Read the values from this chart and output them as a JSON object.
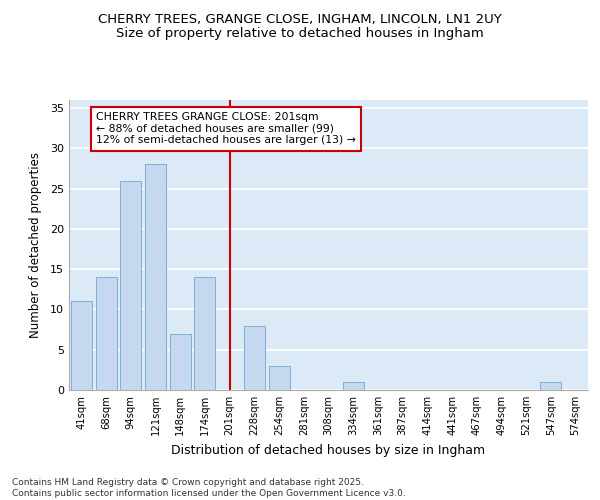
{
  "title1": "CHERRY TREES, GRANGE CLOSE, INGHAM, LINCOLN, LN1 2UY",
  "title2": "Size of property relative to detached houses in Ingham",
  "xlabel": "Distribution of detached houses by size in Ingham",
  "ylabel": "Number of detached properties",
  "categories": [
    "41sqm",
    "68sqm",
    "94sqm",
    "121sqm",
    "148sqm",
    "174sqm",
    "201sqm",
    "228sqm",
    "254sqm",
    "281sqm",
    "308sqm",
    "334sqm",
    "361sqm",
    "387sqm",
    "414sqm",
    "441sqm",
    "467sqm",
    "494sqm",
    "521sqm",
    "547sqm",
    "574sqm"
  ],
  "values": [
    11,
    14,
    26,
    28,
    7,
    14,
    0,
    8,
    3,
    0,
    0,
    1,
    0,
    0,
    0,
    0,
    0,
    0,
    0,
    1,
    0
  ],
  "bar_color": "#c5d8f0",
  "bar_edge_color": "#7bafd4",
  "highlight_index": 6,
  "highlight_color": "#cc0000",
  "annotation_text": "CHERRY TREES GRANGE CLOSE: 201sqm\n← 88% of detached houses are smaller (99)\n12% of semi-detached houses are larger (13) →",
  "annotation_box_color": "#ffffff",
  "annotation_box_edge": "#cc0000",
  "ylim": [
    0,
    36
  ],
  "yticks": [
    0,
    5,
    10,
    15,
    20,
    25,
    30,
    35
  ],
  "footer_text": "Contains HM Land Registry data © Crown copyright and database right 2025.\nContains public sector information licensed under the Open Government Licence v3.0.",
  "bg_color": "#ffffff",
  "plot_bg_color": "#dce9f7",
  "grid_color": "#ffffff",
  "title1_fontsize": 9.5,
  "title2_fontsize": 9.5
}
